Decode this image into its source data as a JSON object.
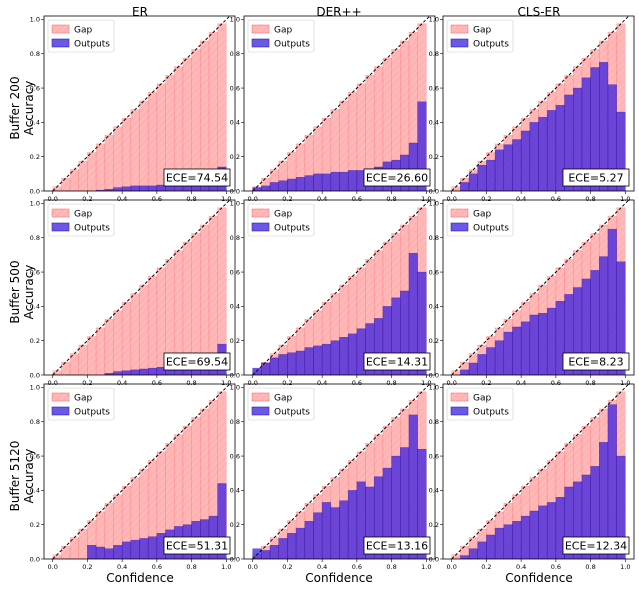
{
  "figure": {
    "column_titles": [
      "ER",
      "DER++",
      "CLS-ER"
    ],
    "row_titles": [
      [
        "Buffer 200",
        "Accuracy"
      ],
      [
        "Buffer 500",
        "Accuracy"
      ],
      [
        "Buffer 5120",
        "Accuracy"
      ]
    ],
    "xlabel": "Confidence",
    "legend": {
      "gap_label": "Gap",
      "outputs_label": "Outputs"
    },
    "colors": {
      "gap": "#ff8080",
      "outputs": "#3a1fe0",
      "diagonal": "#000000"
    }
  },
  "chart_data": [
    {
      "type": "bar",
      "row": 0,
      "col": 0,
      "method": "ER",
      "buffer": "Buffer 200",
      "ece_label": "ECE=74.54",
      "bin_width": 0.05,
      "xlim": [
        -0.05,
        1.05
      ],
      "ylim": [
        0,
        1.02
      ],
      "xticks": [
        "0.0",
        "0.2",
        "0.4",
        "0.6",
        "0.8",
        "1.0"
      ],
      "yticks": [
        "0.0",
        "0.2",
        "0.4",
        "0.6",
        "0.8",
        "1.0"
      ],
      "confidence": [
        0.025,
        0.075,
        0.125,
        0.175,
        0.225,
        0.275,
        0.325,
        0.375,
        0.425,
        0.475,
        0.525,
        0.575,
        0.625,
        0.675,
        0.725,
        0.775,
        0.825,
        0.875,
        0.925,
        0.975
      ],
      "accuracy": [
        0,
        0,
        0,
        0,
        0,
        0.005,
        0.01,
        0.02,
        0.025,
        0.03,
        0.03,
        0.03,
        0.035,
        0.04,
        0.045,
        0.05,
        0.055,
        0.06,
        0.08,
        0.14
      ]
    },
    {
      "type": "bar",
      "row": 0,
      "col": 1,
      "method": "DER++",
      "buffer": "Buffer 200",
      "ece_label": "ECE=26.60",
      "bin_width": 0.05,
      "xlim": [
        -0.05,
        1.05
      ],
      "ylim": [
        0,
        1.02
      ],
      "xticks": [
        "0.0",
        "0.2",
        "0.4",
        "0.6",
        "0.8",
        "1.0"
      ],
      "yticks": [
        "0.0",
        "0.2",
        "0.4",
        "0.6",
        "0.8",
        "1.0"
      ],
      "confidence": [
        0.025,
        0.075,
        0.125,
        0.175,
        0.225,
        0.275,
        0.325,
        0.375,
        0.425,
        0.475,
        0.525,
        0.575,
        0.625,
        0.675,
        0.725,
        0.775,
        0.825,
        0.875,
        0.925,
        0.975
      ],
      "accuracy": [
        0.02,
        0.03,
        0.05,
        0.06,
        0.07,
        0.08,
        0.09,
        0.1,
        0.1,
        0.11,
        0.11,
        0.12,
        0.12,
        0.13,
        0.14,
        0.17,
        0.18,
        0.21,
        0.28,
        0.52
      ]
    },
    {
      "type": "bar",
      "row": 0,
      "col": 2,
      "method": "CLS-ER",
      "buffer": "Buffer 200",
      "ece_label": "ECE=5.27",
      "bin_width": 0.05,
      "xlim": [
        -0.05,
        1.05
      ],
      "ylim": [
        0,
        1.02
      ],
      "xticks": [
        "0.0",
        "0.2",
        "0.4",
        "0.6",
        "0.8",
        "1.0"
      ],
      "yticks": [
        "0.0",
        "0.2",
        "0.4",
        "0.6",
        "0.8",
        "1.0"
      ],
      "confidence": [
        0.025,
        0.075,
        0.125,
        0.175,
        0.225,
        0.275,
        0.325,
        0.375,
        0.425,
        0.475,
        0.525,
        0.575,
        0.625,
        0.675,
        0.725,
        0.775,
        0.825,
        0.875,
        0.925,
        0.975
      ],
      "accuracy": [
        0,
        0.05,
        0.1,
        0.15,
        0.18,
        0.24,
        0.27,
        0.3,
        0.35,
        0.4,
        0.43,
        0.47,
        0.5,
        0.56,
        0.6,
        0.66,
        0.72,
        0.75,
        0.62,
        0.46
      ]
    },
    {
      "type": "bar",
      "row": 1,
      "col": 0,
      "method": "ER",
      "buffer": "Buffer 500",
      "ece_label": "ECE=69.54",
      "bin_width": 0.05,
      "xlim": [
        -0.05,
        1.05
      ],
      "ylim": [
        0,
        1.02
      ],
      "xticks": [
        "0.0",
        "0.2",
        "0.4",
        "0.6",
        "0.8",
        "1.0"
      ],
      "yticks": [
        "0.0",
        "0.2",
        "0.4",
        "0.6",
        "0.8",
        "1.0"
      ],
      "confidence": [
        0.025,
        0.075,
        0.125,
        0.175,
        0.225,
        0.275,
        0.325,
        0.375,
        0.425,
        0.475,
        0.525,
        0.575,
        0.625,
        0.675,
        0.725,
        0.775,
        0.825,
        0.875,
        0.925,
        0.975
      ],
      "accuracy": [
        0,
        0,
        0,
        0,
        0,
        0,
        0.01,
        0.02,
        0.025,
        0.03,
        0.035,
        0.04,
        0.045,
        0.05,
        0.045,
        0.04,
        0.05,
        0.06,
        0.07,
        0.18
      ]
    },
    {
      "type": "bar",
      "row": 1,
      "col": 1,
      "method": "DER++",
      "buffer": "Buffer 500",
      "ece_label": "ECE=14.31",
      "bin_width": 0.05,
      "xlim": [
        -0.05,
        1.05
      ],
      "ylim": [
        0,
        1.02
      ],
      "xticks": [
        "0.0",
        "0.2",
        "0.4",
        "0.6",
        "0.8",
        "1.0"
      ],
      "yticks": [
        "0.0",
        "0.2",
        "0.4",
        "0.6",
        "0.8",
        "1.0"
      ],
      "confidence": [
        0.025,
        0.075,
        0.125,
        0.175,
        0.225,
        0.275,
        0.325,
        0.375,
        0.425,
        0.475,
        0.525,
        0.575,
        0.625,
        0.675,
        0.725,
        0.775,
        0.825,
        0.875,
        0.925,
        0.975
      ],
      "accuracy": [
        0.04,
        0.07,
        0.1,
        0.12,
        0.13,
        0.14,
        0.16,
        0.17,
        0.18,
        0.2,
        0.22,
        0.24,
        0.27,
        0.3,
        0.33,
        0.4,
        0.45,
        0.49,
        0.71,
        0.6
      ]
    },
    {
      "type": "bar",
      "row": 1,
      "col": 2,
      "method": "CLS-ER",
      "buffer": "Buffer 500",
      "ece_label": "ECE=8.23",
      "bin_width": 0.05,
      "xlim": [
        -0.05,
        1.05
      ],
      "ylim": [
        0,
        1.02
      ],
      "xticks": [
        "0.0",
        "0.2",
        "0.4",
        "0.6",
        "0.8",
        "1.0"
      ],
      "yticks": [
        "0.0",
        "0.2",
        "0.4",
        "0.6",
        "0.8",
        "1.0"
      ],
      "confidence": [
        0.025,
        0.075,
        0.125,
        0.175,
        0.225,
        0.275,
        0.325,
        0.375,
        0.425,
        0.475,
        0.525,
        0.575,
        0.625,
        0.675,
        0.725,
        0.775,
        0.825,
        0.875,
        0.925,
        0.975
      ],
      "accuracy": [
        0,
        0.03,
        0.07,
        0.12,
        0.16,
        0.2,
        0.25,
        0.28,
        0.31,
        0.35,
        0.36,
        0.39,
        0.43,
        0.47,
        0.51,
        0.56,
        0.61,
        0.69,
        0.85,
        0.66
      ]
    },
    {
      "type": "bar",
      "row": 2,
      "col": 0,
      "method": "ER",
      "buffer": "Buffer 5120",
      "ece_label": "ECE=51.31",
      "bin_width": 0.05,
      "xlim": [
        -0.05,
        1.05
      ],
      "ylim": [
        0,
        1.02
      ],
      "xticks": [
        "0.0",
        "0.2",
        "0.4",
        "0.6",
        "0.8",
        "1.0"
      ],
      "yticks": [
        "0.0",
        "0.2",
        "0.4",
        "0.6",
        "0.8",
        "1.0"
      ],
      "confidence": [
        0.025,
        0.075,
        0.125,
        0.175,
        0.225,
        0.275,
        0.325,
        0.375,
        0.425,
        0.475,
        0.525,
        0.575,
        0.625,
        0.675,
        0.725,
        0.775,
        0.825,
        0.875,
        0.925,
        0.975
      ],
      "accuracy": [
        0,
        0,
        0,
        0,
        0.08,
        0.07,
        0.06,
        0.08,
        0.1,
        0.11,
        0.12,
        0.13,
        0.15,
        0.17,
        0.19,
        0.2,
        0.22,
        0.23,
        0.25,
        0.44
      ]
    },
    {
      "type": "bar",
      "row": 2,
      "col": 1,
      "method": "DER++",
      "buffer": "Buffer 5120",
      "ece_label": "ECE=13.16",
      "bin_width": 0.05,
      "xlim": [
        -0.05,
        1.05
      ],
      "ylim": [
        0,
        1.02
      ],
      "xticks": [
        "0.0",
        "0.2",
        "0.4",
        "0.6",
        "0.8",
        "1.0"
      ],
      "yticks": [
        "0.0",
        "0.2",
        "0.4",
        "0.6",
        "0.8",
        "1.0"
      ],
      "confidence": [
        0.025,
        0.075,
        0.125,
        0.175,
        0.225,
        0.275,
        0.325,
        0.375,
        0.425,
        0.475,
        0.525,
        0.575,
        0.625,
        0.675,
        0.725,
        0.775,
        0.825,
        0.875,
        0.925,
        0.975
      ],
      "accuracy": [
        0.06,
        0.05,
        0.08,
        0.12,
        0.15,
        0.18,
        0.22,
        0.27,
        0.33,
        0.3,
        0.34,
        0.4,
        0.45,
        0.42,
        0.48,
        0.53,
        0.6,
        0.65,
        0.84,
        0.64
      ]
    },
    {
      "type": "bar",
      "row": 2,
      "col": 2,
      "method": "CLS-ER",
      "buffer": "Buffer 5120",
      "ece_label": "ECE=12.34",
      "bin_width": 0.05,
      "xlim": [
        -0.05,
        1.05
      ],
      "ylim": [
        0,
        1.02
      ],
      "xticks": [
        "0.0",
        "0.2",
        "0.4",
        "0.6",
        "0.8",
        "1.0"
      ],
      "yticks": [
        "0.0",
        "0.2",
        "0.4",
        "0.6",
        "0.8",
        "1.0"
      ],
      "confidence": [
        0.025,
        0.075,
        0.125,
        0.175,
        0.225,
        0.275,
        0.325,
        0.375,
        0.425,
        0.475,
        0.525,
        0.575,
        0.625,
        0.675,
        0.725,
        0.775,
        0.825,
        0.875,
        0.925,
        0.975
      ],
      "accuracy": [
        0,
        0.02,
        0.06,
        0.1,
        0.14,
        0.18,
        0.2,
        0.22,
        0.25,
        0.28,
        0.31,
        0.33,
        0.36,
        0.42,
        0.45,
        0.49,
        0.54,
        0.68,
        0.9,
        0.6
      ]
    }
  ]
}
